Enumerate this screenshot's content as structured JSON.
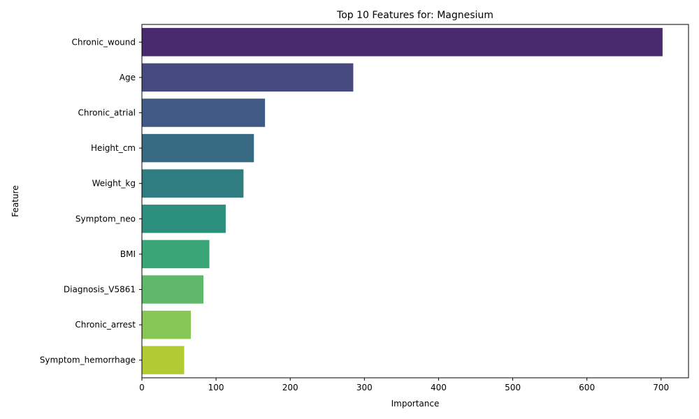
{
  "chart_data": {
    "type": "bar",
    "orientation": "horizontal",
    "title": "Top 10 Features for: Magnesium",
    "xlabel": "Importance",
    "ylabel": "Feature",
    "categories": [
      "Chronic_wound",
      "Age",
      "Chronic_atrial",
      "Height_cm",
      "Weight_kg",
      "Symptom_neo",
      "BMI",
      "Diagnosis_V5861",
      "Chronic_arrest",
      "Symptom_hemorrhage"
    ],
    "values": [
      702,
      285,
      166,
      151,
      137,
      113,
      91,
      83,
      66,
      57
    ],
    "colors": [
      "#482878",
      "#3e4989",
      "#31688e",
      "#26828e",
      "#1f9e89",
      "#35b779",
      "#6ece58",
      "#b5de2b",
      "#fde725",
      "#440154"
    ],
    "xlim": [
      0,
      737
    ],
    "xticks": [
      0,
      100,
      200,
      300,
      400,
      500,
      600,
      700
    ],
    "grid": false,
    "legend": "none"
  }
}
